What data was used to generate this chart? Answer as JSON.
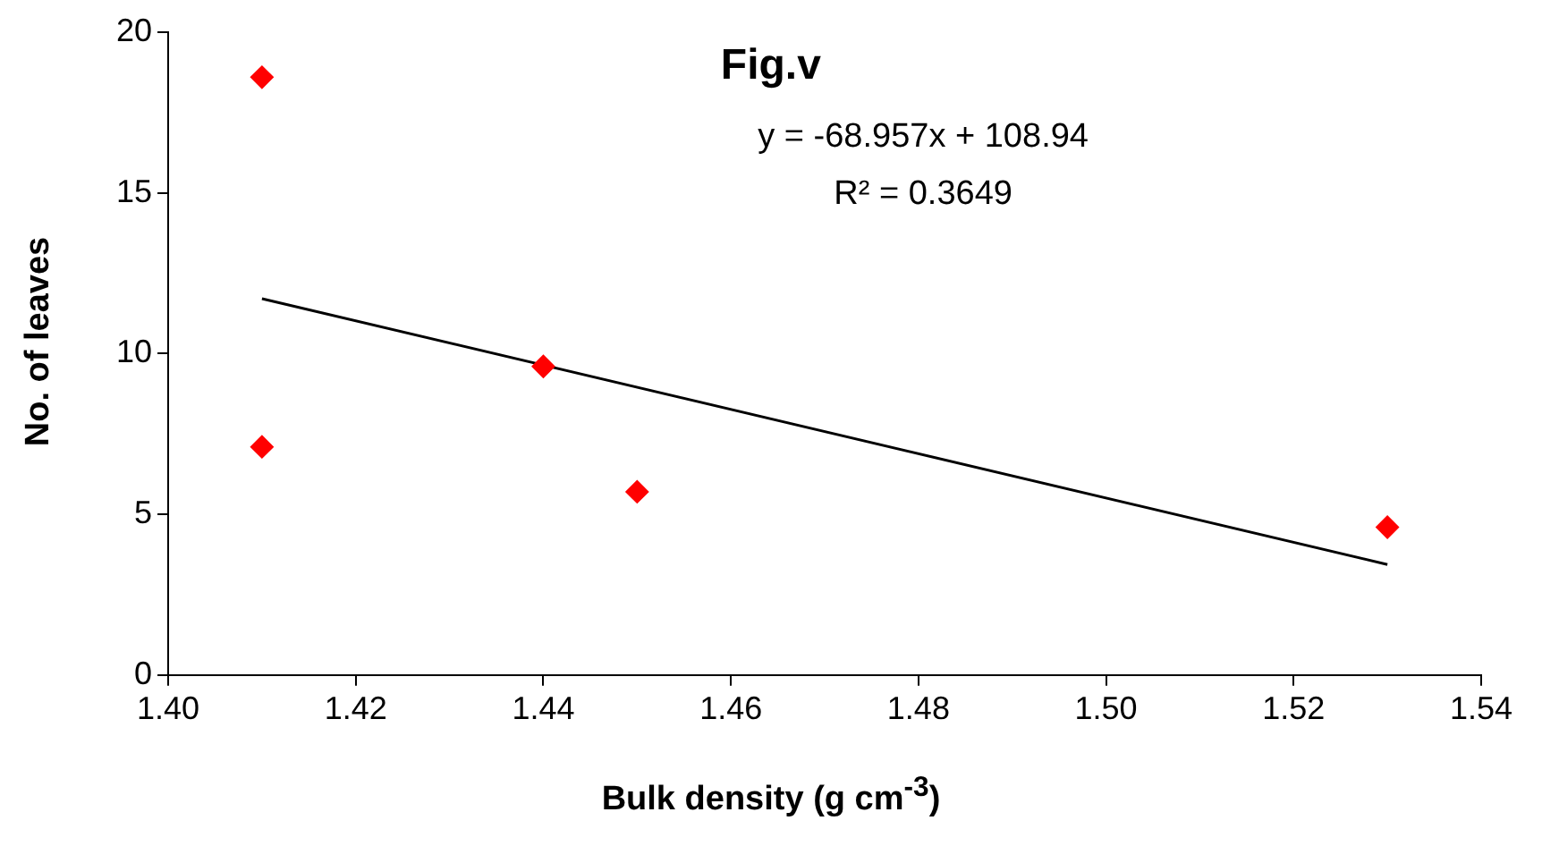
{
  "chart_data": {
    "type": "scatter",
    "title": "Fig.v",
    "xlabel": "Bulk density (g cm$^{-3}$)",
    "ylabel": "No. of leaves",
    "annotations": [
      "y = -68.957x + 108.94",
      "R² = 0.3649"
    ],
    "series": [
      {
        "color": "#ff0000",
        "marker": "diamond",
        "x": [
          1.41,
          1.41,
          1.44,
          1.45,
          1.53
        ],
        "values": [
          18.6,
          7.1,
          9.6,
          5.7,
          4.6
        ]
      },
      {
        "type": "line",
        "color": "#000000",
        "marker": "none",
        "line_style": "solid",
        "x": [
          1.41,
          1.53
        ],
        "values": [
          11.71,
          3.44
        ]
      }
    ],
    "xlim": [
      1.4,
      1.54
    ],
    "xticks": [
      {
        "value": 1.4,
        "label": "1.40"
      },
      {
        "value": 1.42,
        "label": "1.42"
      },
      {
        "value": 1.44,
        "label": "1.44"
      },
      {
        "value": 1.46,
        "label": "1.46"
      },
      {
        "value": 1.48,
        "label": "1.48"
      },
      {
        "value": 1.5,
        "label": "1.50"
      },
      {
        "value": 1.52,
        "label": "1.52"
      },
      {
        "value": 1.54,
        "label": "1.54"
      }
    ],
    "ylim": [
      0,
      20
    ],
    "yticks": [
      0,
      5,
      10,
      15,
      20
    ],
    "grid": false,
    "legend": false
  }
}
